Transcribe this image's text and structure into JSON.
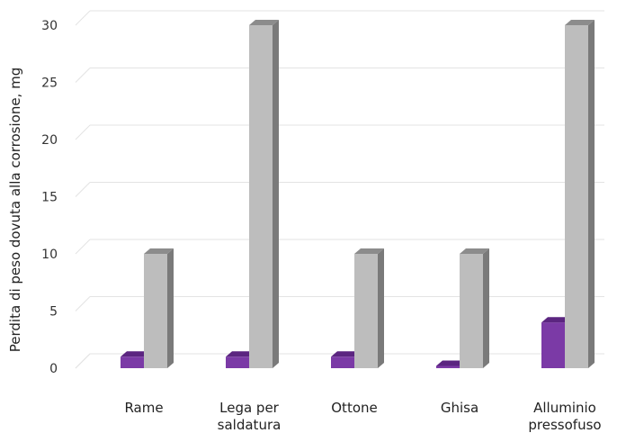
{
  "chart_data": {
    "type": "bar",
    "title": "",
    "xlabel": "",
    "ylabel": "Perdita di peso dovuta alla corrosione, mg",
    "ylim": [
      0,
      30
    ],
    "yticks": [
      "0",
      "5",
      "10",
      "15",
      "20",
      "25",
      "30"
    ],
    "categories": [
      [
        "Rame"
      ],
      [
        "Lega per",
        "saldatura"
      ],
      [
        "Ottone"
      ],
      [
        "Ghisa"
      ],
      [
        "Alluminio",
        "pressofuso"
      ]
    ],
    "series": [
      {
        "values": [
          1,
          1,
          1,
          0.2,
          4
        ],
        "color": "#7b3aa6",
        "top_color": "#5b2580",
        "side_color": "#4a1d69"
      },
      {
        "values": [
          10,
          30,
          10,
          10,
          30
        ],
        "color": "#bdbdbd",
        "top_color": "#8c8c8c",
        "side_color": "#7a7a7a"
      }
    ],
    "grid": true,
    "legend": "none",
    "style": "3d-bar"
  }
}
